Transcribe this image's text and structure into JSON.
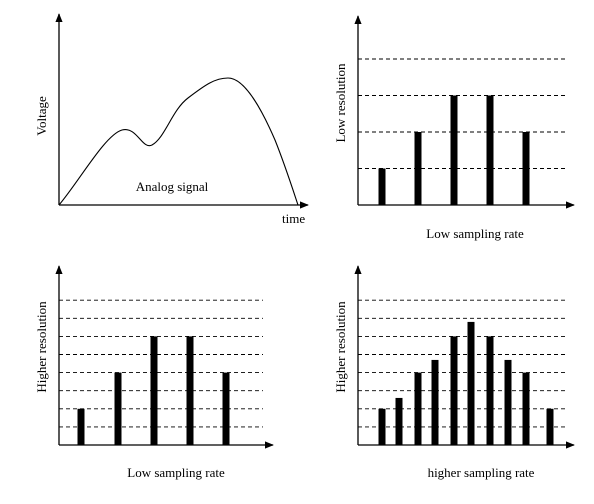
{
  "panels": [
    {
      "id": "analog",
      "ylabel": "Voltage",
      "xlabel": "time",
      "caption": "Analog signal",
      "signal": {
        "type": "analog-curve",
        "peaks": 2
      }
    },
    {
      "id": "low-res-low-rate",
      "ylabel": "Low resolution",
      "xlabel": "Low sampling rate",
      "levels": 4,
      "samples": [
        1,
        2,
        3,
        3,
        2
      ]
    },
    {
      "id": "high-res-low-rate",
      "ylabel": "Higher resolution",
      "xlabel": "Low sampling rate",
      "levels": 8,
      "samples": [
        2,
        4,
        6,
        6,
        4
      ]
    },
    {
      "id": "high-res-high-rate",
      "ylabel": "Higher resolution",
      "xlabel": "higher sampling rate",
      "levels": 8,
      "samples": [
        2,
        2.6,
        4,
        4.7,
        6,
        6.8,
        6,
        4.7,
        4,
        2
      ]
    }
  ],
  "colors": {
    "ink": "#000000",
    "background": "#ffffff"
  }
}
